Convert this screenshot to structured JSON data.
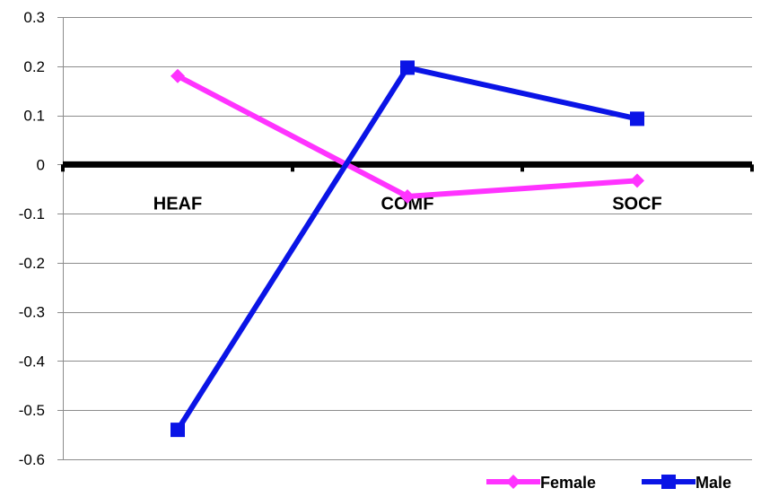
{
  "chart_data": {
    "type": "line",
    "categories": [
      "HEAF",
      "COMF",
      "SOCF"
    ],
    "series": [
      {
        "name": "Female",
        "values": [
          0.18,
          -0.065,
          -0.033
        ],
        "color": "#ff33ff",
        "marker": "diamond"
      },
      {
        "name": "Male",
        "values": [
          -0.54,
          0.197,
          0.093
        ],
        "color": "#0a14e6",
        "marker": "square"
      }
    ],
    "ylim": [
      -0.6,
      0.3
    ],
    "yticks": [
      "0.3",
      "0.2",
      "0.1",
      "0",
      "-0.1",
      "-0.2",
      "-0.3",
      "-0.4",
      "-0.5",
      "-0.6"
    ],
    "ytick_values": [
      0.3,
      0.2,
      0.1,
      0,
      -0.1,
      -0.2,
      -0.3,
      -0.4,
      -0.5,
      -0.6
    ],
    "grid": true,
    "legend_position": "bottom-right",
    "zero_line_color": "#000000"
  }
}
